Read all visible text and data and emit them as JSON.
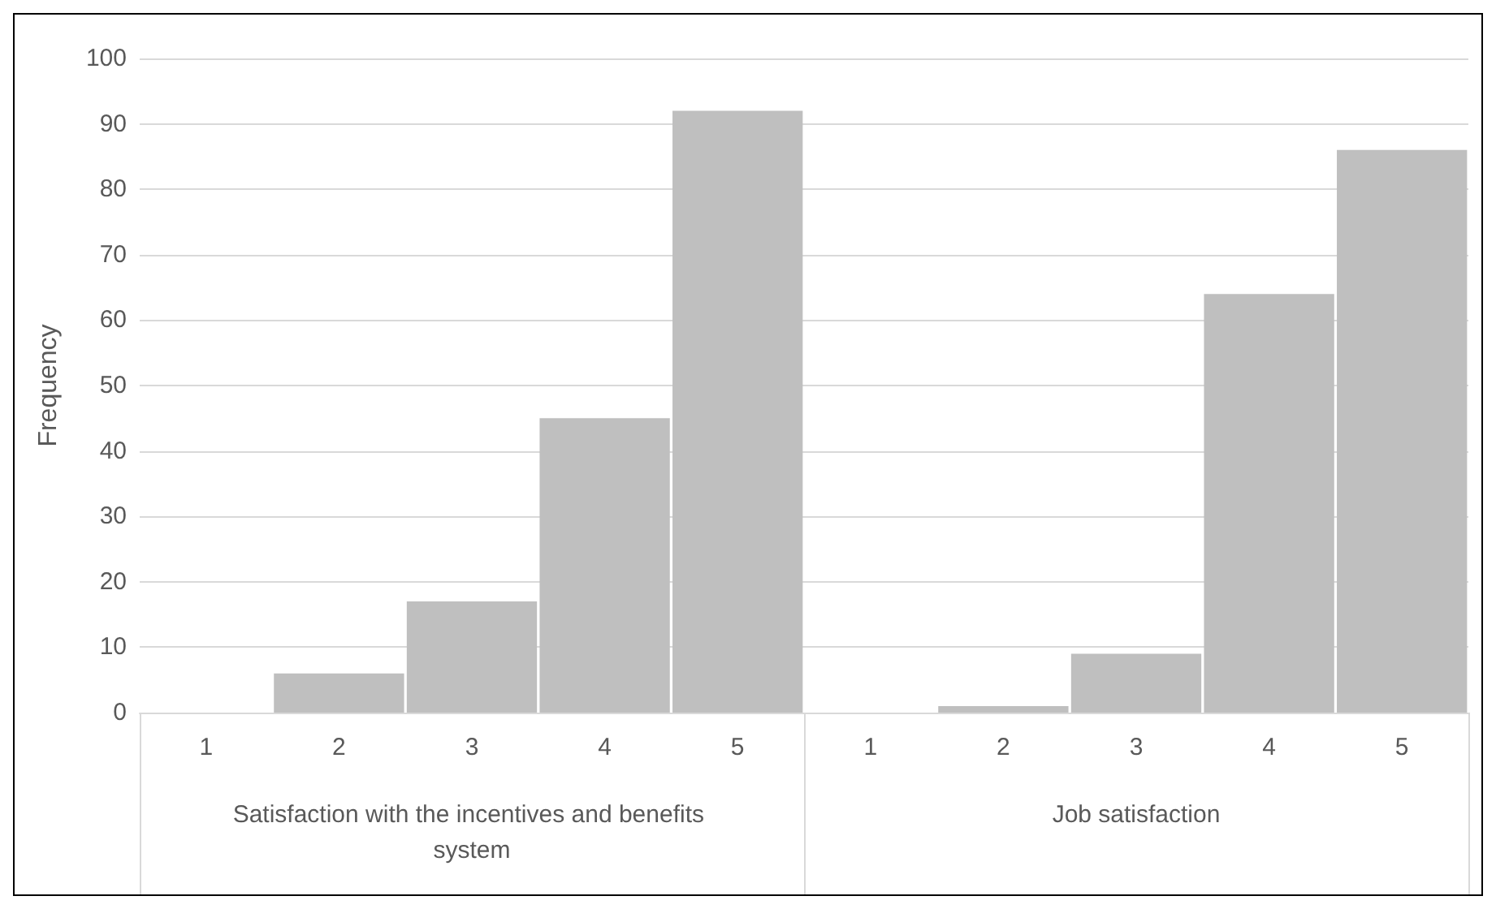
{
  "chart_data": {
    "type": "bar",
    "ylabel": "Frequency",
    "categories": [
      "1",
      "2",
      "3",
      "4",
      "5",
      "1",
      "2",
      "3",
      "4",
      "5"
    ],
    "values": [
      0,
      6,
      17,
      45,
      92,
      0,
      1,
      9,
      64,
      86
    ],
    "color": "#bfbfbf",
    "annotations": [
      "Satisfaction with the incentives and benefits system",
      "Job satisfaction"
    ],
    "ylim": [
      0,
      100
    ],
    "yticks": [
      0,
      10,
      20,
      30,
      40,
      50,
      60,
      70,
      80,
      90,
      100
    ],
    "grid": "y"
  }
}
